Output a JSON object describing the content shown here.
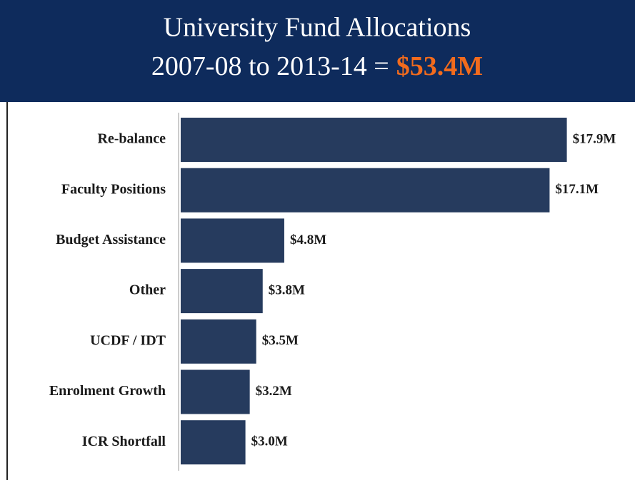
{
  "chart_data": {
    "type": "hbar",
    "title": "University Fund Allocations",
    "subtitle": "2007-08 to 2013-14 =",
    "subtitle_highlight": "$53.4M",
    "categories": [
      "Re-balance",
      "Faculty Positions",
      "Budget Assistance",
      "Other",
      "UCDF / IDT",
      "Enrolment Growth",
      "ICR Shortfall"
    ],
    "values": [
      17.9,
      17.1,
      4.8,
      3.8,
      3.5,
      3.2,
      3.0
    ],
    "value_labels": [
      "$17.9M",
      "$17.1M",
      "$4.8M",
      "$3.8M",
      "$3.5M",
      "$3.2M",
      "$3.0M"
    ],
    "color": "#263b5e",
    "header_color": "#0e2b5c"
  }
}
